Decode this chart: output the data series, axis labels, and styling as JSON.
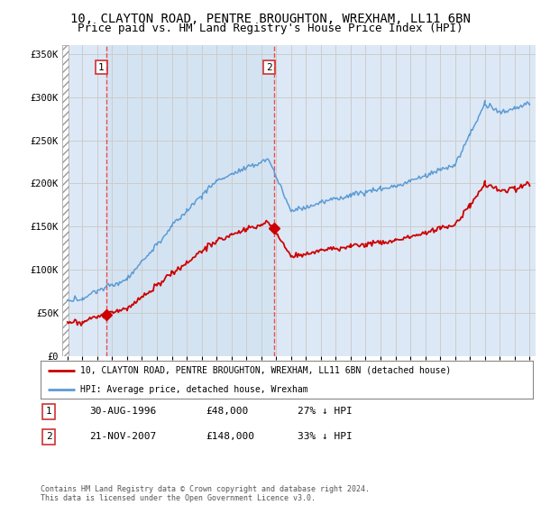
{
  "title": "10, CLAYTON ROAD, PENTRE BROUGHTON, WREXHAM, LL11 6BN",
  "subtitle": "Price paid vs. HM Land Registry's House Price Index (HPI)",
  "title_fontsize": 10,
  "subtitle_fontsize": 9,
  "sale1_price": 48000,
  "sale2_price": 148000,
  "hpi_color": "#5b9bd5",
  "price_color": "#cc0000",
  "dashed_color": "#ee3333",
  "background_plot": "#dce8f5",
  "background_highlight": "#dce8f5",
  "background_fig": "#ffffff",
  "grid_color": "#aaaaaa",
  "ylim_max": 360000,
  "legend_entry1": "10, CLAYTON ROAD, PENTRE BROUGHTON, WREXHAM, LL11 6BN (detached house)",
  "legend_entry2": "HPI: Average price, detached house, Wrexham",
  "table_row1": [
    "1",
    "30-AUG-1996",
    "£48,000",
    "27% ↓ HPI"
  ],
  "table_row2": [
    "2",
    "21-NOV-2007",
    "£148,000",
    "33% ↓ HPI"
  ],
  "footer": "Contains HM Land Registry data © Crown copyright and database right 2024.\nThis data is licensed under the Open Government Licence v3.0."
}
